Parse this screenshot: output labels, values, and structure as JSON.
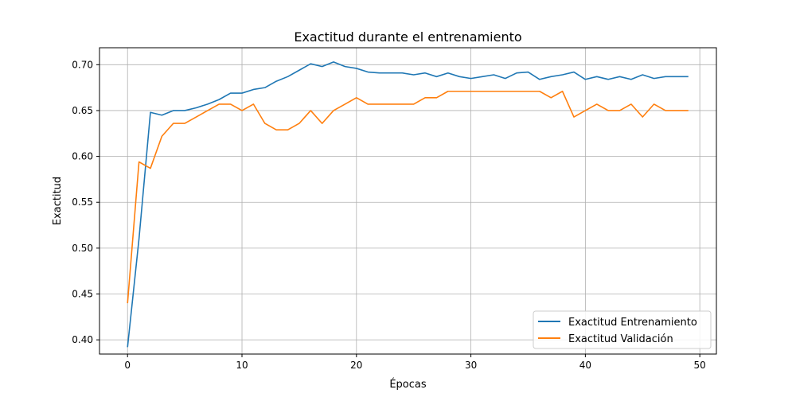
{
  "chart_data": {
    "type": "line",
    "title": "Exactitud durante el entrenamiento",
    "xlabel": "Épocas",
    "ylabel": "Exactitud",
    "xlim": [
      -2.45,
      51.45
    ],
    "ylim": [
      0.3845,
      0.7185
    ],
    "xticks": [
      0,
      10,
      20,
      30,
      40,
      50
    ],
    "yticks": [
      0.4,
      0.45,
      0.5,
      0.55,
      0.6,
      0.65,
      0.7
    ],
    "grid": true,
    "legend_position": "lower-right",
    "x": [
      0,
      1,
      2,
      3,
      4,
      5,
      6,
      7,
      8,
      9,
      10,
      11,
      12,
      13,
      14,
      15,
      16,
      17,
      18,
      19,
      20,
      21,
      22,
      23,
      24,
      25,
      26,
      27,
      28,
      29,
      30,
      31,
      32,
      33,
      34,
      35,
      36,
      37,
      38,
      39,
      40,
      41,
      42,
      43,
      44,
      45,
      46,
      47,
      48,
      49
    ],
    "series": [
      {
        "name": "Exactitud Entrenamiento",
        "color": "#1f77b4",
        "values": [
          0.392,
          0.51,
          0.648,
          0.645,
          0.65,
          0.65,
          0.653,
          0.657,
          0.662,
          0.669,
          0.669,
          0.673,
          0.675,
          0.682,
          0.687,
          0.694,
          0.701,
          0.698,
          0.703,
          0.698,
          0.696,
          0.692,
          0.691,
          0.691,
          0.691,
          0.689,
          0.691,
          0.687,
          0.691,
          0.687,
          0.685,
          0.687,
          0.689,
          0.685,
          0.691,
          0.692,
          0.684,
          0.687,
          0.689,
          0.692,
          0.684,
          0.687,
          0.684,
          0.687,
          0.684,
          0.689,
          0.685,
          0.687,
          0.687,
          0.687
        ]
      },
      {
        "name": "Exactitud Validación",
        "color": "#ff7f0e",
        "values": [
          0.44,
          0.594,
          0.587,
          0.622,
          0.636,
          0.636,
          0.643,
          0.65,
          0.657,
          0.657,
          0.65,
          0.657,
          0.636,
          0.629,
          0.629,
          0.636,
          0.65,
          0.636,
          0.65,
          0.657,
          0.664,
          0.657,
          0.657,
          0.657,
          0.657,
          0.657,
          0.664,
          0.664,
          0.671,
          0.671,
          0.671,
          0.671,
          0.671,
          0.671,
          0.671,
          0.671,
          0.671,
          0.664,
          0.671,
          0.643,
          0.65,
          0.657,
          0.65,
          0.65,
          0.657,
          0.643,
          0.657,
          0.65,
          0.65,
          0.65
        ]
      }
    ]
  }
}
